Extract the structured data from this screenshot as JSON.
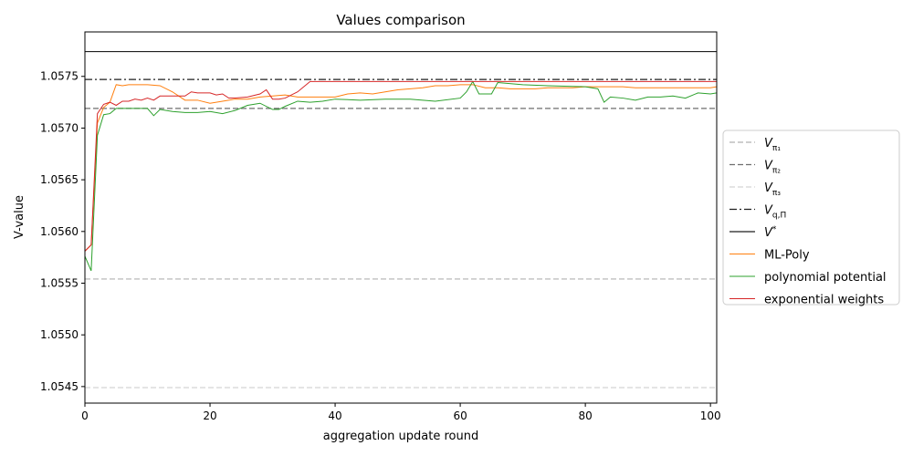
{
  "chart_data": {
    "type": "line",
    "title": "Values comparison",
    "xlabel": "aggregation update round",
    "ylabel": "V-value",
    "xlim": [
      0,
      101
    ],
    "ylim": [
      1.05434,
      1.05793
    ],
    "xticks": [
      0,
      20,
      40,
      60,
      80,
      100
    ],
    "yticks": [
      1.0545,
      1.055,
      1.0555,
      1.056,
      1.0565,
      1.057,
      1.0575
    ],
    "xtick_labels": [
      "0",
      "20",
      "40",
      "60",
      "80",
      "100"
    ],
    "ytick_labels": [
      "1.0545",
      "1.0550",
      "1.0555",
      "1.0560",
      "1.0565",
      "1.0570",
      "1.0575"
    ],
    "grid": false,
    "legend_position": "outside-right",
    "reference_lines": [
      {
        "label_base": "V",
        "label_sub": "π₁",
        "y": 1.05554,
        "style": "dashed",
        "color": "#b0b0b0"
      },
      {
        "label_base": "V",
        "label_sub": "π₂",
        "y": 1.05719,
        "style": "dashed",
        "color": "#6e6e6e"
      },
      {
        "label_base": "V",
        "label_sub": "π₃",
        "y": 1.05449,
        "style": "dashed",
        "color": "#d3d3d3"
      },
      {
        "label_base": "V",
        "label_sub": "q,Π",
        "y": 1.05747,
        "style": "dashdot",
        "color": "#1f1f1f"
      },
      {
        "label_base": "V",
        "label_sup": "*",
        "y": 1.05774,
        "style": "solid",
        "color": "#1f1f1f"
      }
    ],
    "series": [
      {
        "name": "ML-Poly",
        "color": "#ff7f0e",
        "x": [
          0,
          1,
          2,
          3,
          4,
          5,
          6,
          7,
          8,
          9,
          10,
          12,
          14,
          16,
          18,
          20,
          22,
          24,
          26,
          28,
          30,
          32,
          34,
          36,
          38,
          40,
          42,
          44,
          46,
          48,
          50,
          52,
          54,
          56,
          58,
          60,
          62,
          64,
          66,
          68,
          70,
          72,
          74,
          76,
          78,
          80,
          82,
          84,
          86,
          88,
          90,
          92,
          94,
          96,
          98,
          100,
          101
        ],
        "values": [
          1.05581,
          1.05587,
          1.05705,
          1.0572,
          1.05725,
          1.05742,
          1.05741,
          1.05742,
          1.05742,
          1.05742,
          1.05742,
          1.05741,
          1.05735,
          1.05727,
          1.05727,
          1.05724,
          1.05726,
          1.05728,
          1.05728,
          1.0573,
          1.05731,
          1.05732,
          1.0573,
          1.0573,
          1.0573,
          1.0573,
          1.05733,
          1.05734,
          1.05733,
          1.05735,
          1.05737,
          1.05738,
          1.05739,
          1.05741,
          1.05741,
          1.05742,
          1.05742,
          1.05739,
          1.05739,
          1.05738,
          1.05738,
          1.05738,
          1.05739,
          1.05739,
          1.05739,
          1.0574,
          1.0574,
          1.0574,
          1.0574,
          1.05739,
          1.05739,
          1.05739,
          1.05739,
          1.05739,
          1.05739,
          1.05739,
          1.0574
        ]
      },
      {
        "name": "polynomial potential",
        "color": "#2ca02c",
        "x": [
          0,
          1,
          2,
          3,
          4,
          5,
          6,
          8,
          10,
          11,
          12,
          14,
          16,
          18,
          20,
          22,
          24,
          26,
          28,
          30,
          31,
          32,
          34,
          36,
          38,
          40,
          44,
          48,
          52,
          56,
          60,
          61,
          62,
          63,
          65,
          66,
          70,
          74,
          80,
          82,
          83,
          84,
          86,
          88,
          90,
          92,
          94,
          96,
          98,
          100,
          101
        ],
        "values": [
          1.05576,
          1.05562,
          1.05693,
          1.05713,
          1.05714,
          1.05719,
          1.05719,
          1.05719,
          1.05719,
          1.05712,
          1.05718,
          1.05716,
          1.05715,
          1.05715,
          1.05716,
          1.05714,
          1.05717,
          1.05722,
          1.05724,
          1.05718,
          1.05718,
          1.05721,
          1.05726,
          1.05725,
          1.05726,
          1.05728,
          1.05727,
          1.05728,
          1.05728,
          1.05726,
          1.05729,
          1.05735,
          1.05745,
          1.05733,
          1.05733,
          1.05744,
          1.05742,
          1.05741,
          1.0574,
          1.05738,
          1.05725,
          1.0573,
          1.05729,
          1.05727,
          1.0573,
          1.0573,
          1.05731,
          1.05729,
          1.05734,
          1.05733,
          1.05734
        ]
      },
      {
        "name": "exponential weights",
        "color": "#d62728",
        "x": [
          0,
          1,
          2,
          3,
          4,
          5,
          6,
          7,
          8,
          9,
          10,
          11,
          12,
          14,
          16,
          17,
          18,
          20,
          21,
          22,
          23,
          24,
          26,
          28,
          29,
          30,
          31,
          32,
          34,
          36,
          38,
          40,
          45,
          50,
          55,
          60,
          65,
          70,
          75,
          80,
          85,
          90,
          95,
          100,
          101
        ],
        "values": [
          1.05581,
          1.05587,
          1.05714,
          1.05723,
          1.05725,
          1.05722,
          1.05726,
          1.05726,
          1.05728,
          1.05727,
          1.05729,
          1.05727,
          1.05731,
          1.05731,
          1.05731,
          1.05735,
          1.05734,
          1.05734,
          1.05732,
          1.05733,
          1.05729,
          1.05729,
          1.0573,
          1.05733,
          1.05737,
          1.05728,
          1.05728,
          1.05729,
          1.05735,
          1.05745,
          1.05745,
          1.05745,
          1.05745,
          1.05745,
          1.05745,
          1.05745,
          1.05745,
          1.05745,
          1.05745,
          1.05745,
          1.05745,
          1.05745,
          1.05745,
          1.05745,
          1.05745
        ]
      }
    ]
  }
}
